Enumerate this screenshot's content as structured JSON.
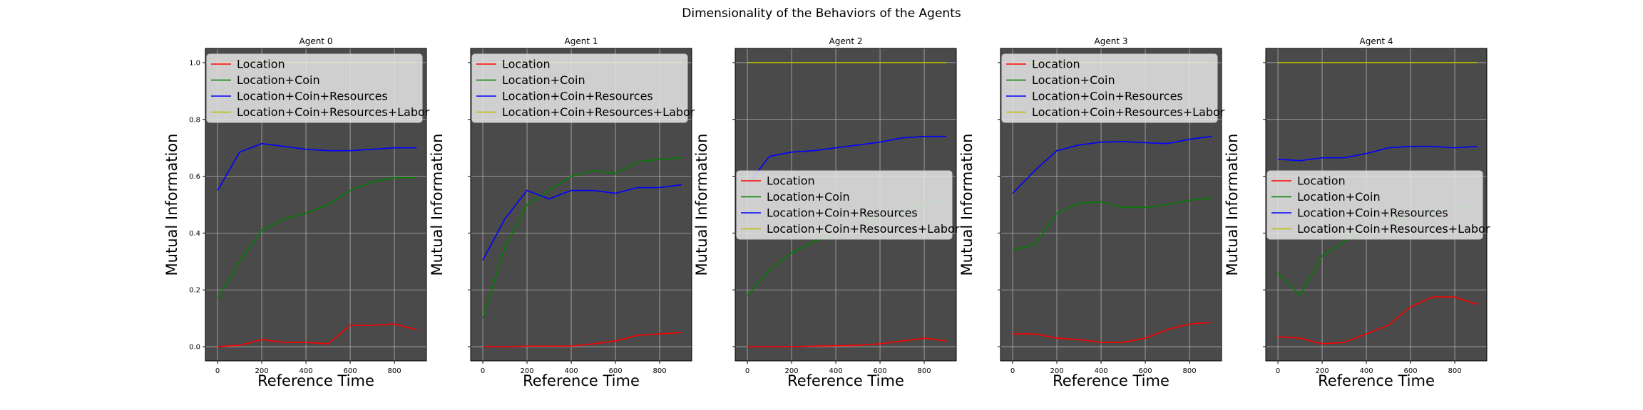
{
  "figure": {
    "title": "Dimensionality of the Behaviors of the Agents",
    "plot_background": "#4a4a4a",
    "grid_color": "#b0b0b0"
  },
  "chart_data": {
    "type": "line",
    "xlabel": "Reference Time",
    "ylabel": "Mutual Information",
    "xlim": [
      -55,
      945
    ],
    "ylim": [
      -0.05,
      1.05
    ],
    "x_ticks": [
      0,
      200,
      400,
      600,
      800
    ],
    "y_ticks": [
      0.0,
      0.2,
      0.4,
      0.6,
      0.8,
      1.0
    ],
    "y_tick_labels": [
      "0.0",
      "0.2",
      "0.4",
      "0.6",
      "0.8",
      "1.0"
    ],
    "grid": true,
    "x": [
      0,
      100,
      200,
      300,
      400,
      500,
      600,
      700,
      800,
      900
    ],
    "series_styles": [
      {
        "name": "Location",
        "color": "#ff0000"
      },
      {
        "name": "Location+Coin",
        "color": "#008000"
      },
      {
        "name": "Location+Coin+Resources",
        "color": "#0000ff"
      },
      {
        "name": "Location+Coin+Resources+Labor",
        "color": "#bfbf00"
      }
    ],
    "panels": [
      {
        "title": "Agent 0",
        "show_y_ticks": true,
        "legend_position": "upper-left",
        "series": [
          {
            "name": "Location",
            "values": [
              0.0,
              0.005,
              0.025,
              0.015,
              0.015,
              0.01,
              0.075,
              0.075,
              0.08,
              0.06
            ]
          },
          {
            "name": "Location+Coin",
            "values": [
              0.17,
              0.3,
              0.41,
              0.45,
              0.47,
              0.5,
              0.55,
              0.58,
              0.595,
              0.595
            ]
          },
          {
            "name": "Location+Coin+Resources",
            "values": [
              0.55,
              0.685,
              0.715,
              0.705,
              0.695,
              0.69,
              0.69,
              0.695,
              0.7,
              0.7
            ]
          },
          {
            "name": "Location+Coin+Resources+Labor",
            "values": [
              1.0,
              1.0,
              1.0,
              1.0,
              1.0,
              1.0,
              1.0,
              1.0,
              1.0,
              1.0
            ]
          }
        ]
      },
      {
        "title": "Agent 1",
        "show_y_ticks": false,
        "legend_position": "upper-left",
        "series": [
          {
            "name": "Location",
            "values": [
              0.0,
              0.0,
              0.002,
              0.002,
              0.002,
              0.01,
              0.02,
              0.04,
              0.045,
              0.05
            ]
          },
          {
            "name": "Location+Coin",
            "values": [
              0.1,
              0.35,
              0.5,
              0.55,
              0.6,
              0.62,
              0.61,
              0.65,
              0.66,
              0.665
            ]
          },
          {
            "name": "Location+Coin+Resources",
            "values": [
              0.305,
              0.45,
              0.55,
              0.52,
              0.55,
              0.55,
              0.54,
              0.56,
              0.56,
              0.57
            ]
          },
          {
            "name": "Location+Coin+Resources+Labor",
            "values": [
              1.0,
              1.0,
              1.0,
              1.0,
              1.0,
              1.0,
              1.0,
              1.0,
              1.0,
              1.0
            ]
          }
        ]
      },
      {
        "title": "Agent 2",
        "show_y_ticks": false,
        "legend_position": "center-left",
        "series": [
          {
            "name": "Location",
            "values": [
              0.0,
              0.0,
              0.0,
              0.002,
              0.003,
              0.005,
              0.01,
              0.02,
              0.03,
              0.02
            ]
          },
          {
            "name": "Location+Coin",
            "values": [
              0.18,
              0.27,
              0.33,
              0.37,
              0.4,
              0.43,
              0.46,
              0.48,
              0.5,
              0.52
            ]
          },
          {
            "name": "Location+Coin+Resources",
            "values": [
              0.57,
              0.67,
              0.685,
              0.69,
              0.7,
              0.71,
              0.72,
              0.735,
              0.74,
              0.74
            ]
          },
          {
            "name": "Location+Coin+Resources+Labor",
            "values": [
              1.0,
              1.0,
              1.0,
              1.0,
              1.0,
              1.0,
              1.0,
              1.0,
              1.0,
              1.0
            ]
          }
        ]
      },
      {
        "title": "Agent 3",
        "show_y_ticks": false,
        "legend_position": "upper-left",
        "series": [
          {
            "name": "Location",
            "values": [
              0.045,
              0.045,
              0.03,
              0.025,
              0.015,
              0.015,
              0.03,
              0.06,
              0.08,
              0.085
            ]
          },
          {
            "name": "Location+Coin",
            "values": [
              0.34,
              0.36,
              0.47,
              0.505,
              0.51,
              0.49,
              0.49,
              0.5,
              0.515,
              0.525
            ]
          },
          {
            "name": "Location+Coin+Resources",
            "values": [
              0.54,
              0.62,
              0.69,
              0.71,
              0.72,
              0.722,
              0.718,
              0.715,
              0.73,
              0.74
            ]
          },
          {
            "name": "Location+Coin+Resources+Labor",
            "values": [
              1.0,
              1.0,
              1.0,
              1.0,
              1.0,
              1.0,
              1.0,
              1.0,
              1.0,
              1.0
            ]
          }
        ]
      },
      {
        "title": "Agent 4",
        "show_y_ticks": false,
        "legend_position": "center-left",
        "series": [
          {
            "name": "Location",
            "values": [
              0.035,
              0.03,
              0.01,
              0.015,
              0.045,
              0.075,
              0.14,
              0.175,
              0.175,
              0.15
            ]
          },
          {
            "name": "Location+Coin",
            "values": [
              0.26,
              0.18,
              0.32,
              0.37,
              0.41,
              0.44,
              0.46,
              0.48,
              0.49,
              0.5
            ]
          },
          {
            "name": "Location+Coin+Resources",
            "values": [
              0.66,
              0.655,
              0.665,
              0.665,
              0.68,
              0.7,
              0.705,
              0.705,
              0.7,
              0.705
            ]
          },
          {
            "name": "Location+Coin+Resources+Labor",
            "values": [
              1.0,
              1.0,
              1.0,
              1.0,
              1.0,
              1.0,
              1.0,
              1.0,
              1.0,
              1.0
            ]
          }
        ]
      }
    ]
  }
}
